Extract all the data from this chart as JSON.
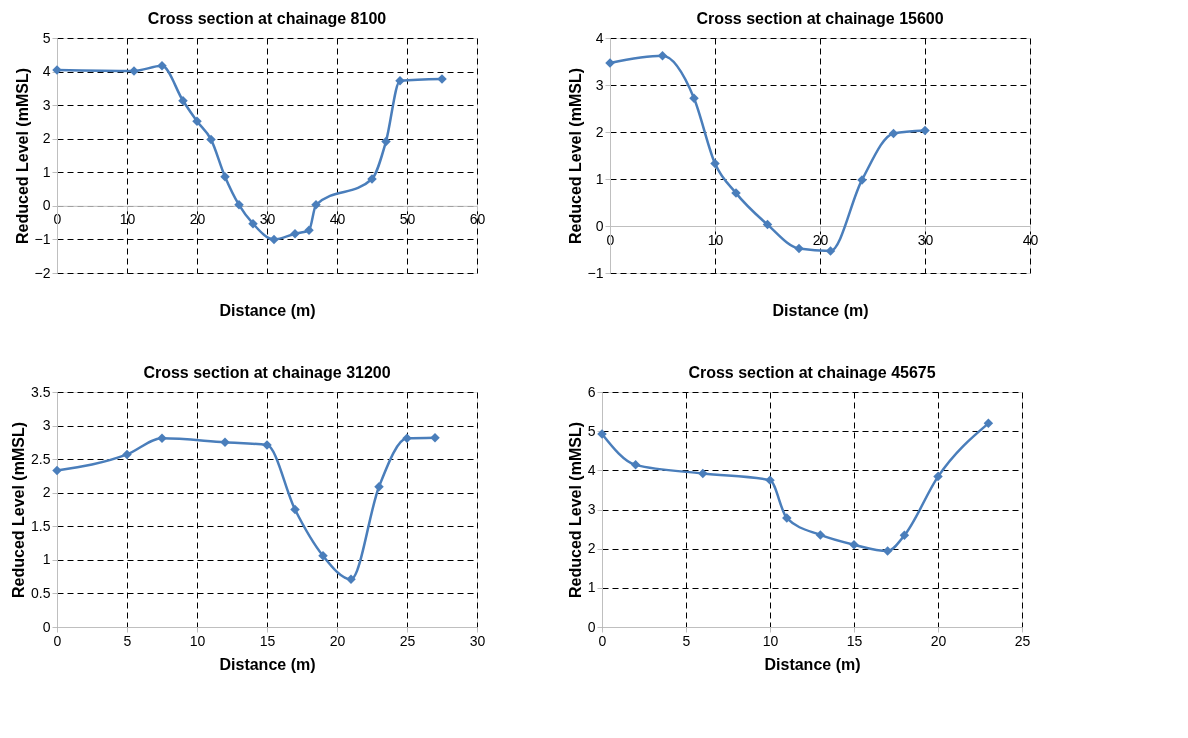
{
  "chart_data": [
    {
      "type": "line",
      "title": "Cross section at chainage 8100",
      "xlabel": "Distance (m)",
      "ylabel": "Reduced Level (mMSL)",
      "marker": "diamond",
      "grid": true,
      "xlim": [
        0,
        60
      ],
      "xticks": [
        0,
        10,
        20,
        30,
        40,
        50,
        60
      ],
      "ylim": [
        -2,
        5
      ],
      "yticks": [
        -2,
        -1,
        0,
        1,
        2,
        3,
        4,
        5
      ],
      "x": [
        0,
        11,
        15,
        18,
        20,
        22,
        24,
        26,
        28,
        31,
        34,
        36,
        37,
        45,
        47,
        49,
        55
      ],
      "series": [
        {
          "color": "#4a7ebb",
          "values": [
            4.05,
            4.02,
            4.17,
            3.13,
            2.52,
            1.98,
            0.87,
            0.03,
            -0.53,
            -1.0,
            -0.83,
            -0.73,
            0.03,
            0.8,
            1.92,
            3.73,
            3.78
          ]
        }
      ]
    },
    {
      "type": "line",
      "title": "Cross section at chainage 15600",
      "xlabel": "Distance (m)",
      "ylabel": "Reduced Level (mMSL)",
      "marker": "diamond",
      "grid": true,
      "xlim": [
        0,
        40
      ],
      "xticks": [
        0,
        10,
        20,
        30,
        40
      ],
      "ylim": [
        -1,
        4
      ],
      "yticks": [
        -1,
        0,
        1,
        2,
        3,
        4
      ],
      "x": [
        0,
        5,
        8,
        10,
        12,
        15,
        18,
        21,
        24,
        27,
        30
      ],
      "series": [
        {
          "color": "#4a7ebb",
          "values": [
            3.47,
            3.62,
            2.72,
            1.33,
            0.7,
            0.03,
            -0.48,
            -0.53,
            0.98,
            1.97,
            2.03
          ]
        }
      ]
    },
    {
      "type": "line",
      "title": "Cross section at chainage 31200",
      "xlabel": "Distance (m)",
      "ylabel": "Reduced Level (mMSL)",
      "marker": "diamond",
      "grid": true,
      "xlim": [
        0,
        30
      ],
      "xticks": [
        0,
        5,
        10,
        15,
        20,
        25,
        30
      ],
      "ylim": [
        0,
        3.5
      ],
      "yticks": [
        0,
        0.5,
        1,
        1.5,
        2,
        2.5,
        3,
        3.5
      ],
      "x": [
        0,
        5,
        7.5,
        12,
        15,
        17,
        19,
        21,
        23,
        25,
        27
      ],
      "series": [
        {
          "color": "#4a7ebb",
          "values": [
            2.33,
            2.57,
            2.81,
            2.75,
            2.71,
            1.75,
            1.06,
            0.71,
            2.09,
            2.81,
            2.82
          ]
        }
      ]
    },
    {
      "type": "line",
      "title": "Cross section at chainage 45675",
      "xlabel": "Distance (m)",
      "ylabel": "Reduced Level (mMSL)",
      "marker": "diamond",
      "grid": true,
      "xlim": [
        0,
        25
      ],
      "xticks": [
        0,
        5,
        10,
        15,
        20,
        25
      ],
      "ylim": [
        0,
        6
      ],
      "yticks": [
        0,
        1,
        2,
        3,
        4,
        5,
        6
      ],
      "x": [
        0,
        2,
        6,
        10,
        11,
        13,
        15,
        17,
        18,
        20,
        23
      ],
      "series": [
        {
          "color": "#4a7ebb",
          "values": [
            4.93,
            4.14,
            3.92,
            3.75,
            2.78,
            2.35,
            2.1,
            1.94,
            2.34,
            3.84,
            5.2
          ]
        }
      ]
    }
  ]
}
